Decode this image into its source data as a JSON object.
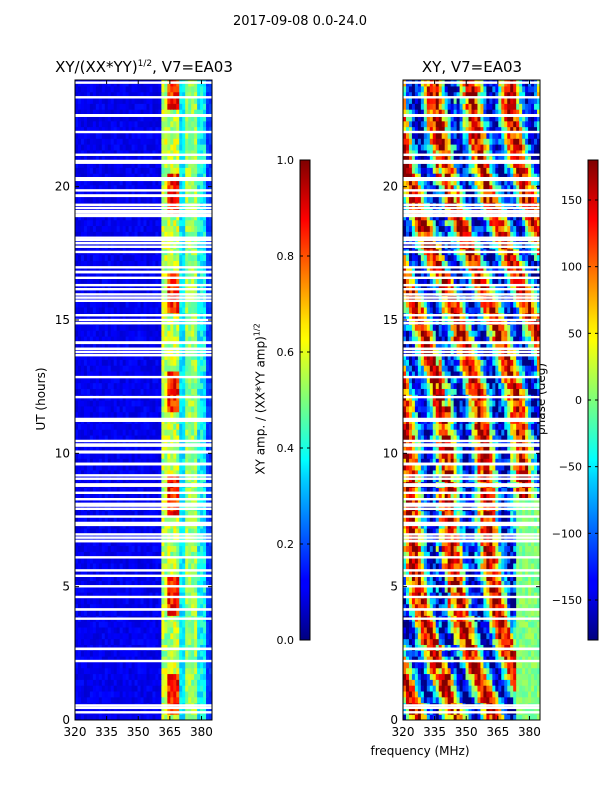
{
  "suptitle": "2017-09-08 0.0-24.0",
  "chart_data": [
    {
      "type": "heatmap",
      "title_main": "XY/(XX*YY)",
      "title_exp": "1/2",
      "title_suffix": ", V7=EA03",
      "xlabel": "",
      "ylabel": "UT (hours)",
      "xlim": [
        320,
        385
      ],
      "ylim": [
        0,
        24
      ],
      "xticks": [
        "320",
        "335",
        "350",
        "365",
        "380"
      ],
      "yticks": [
        "0",
        "5",
        "10",
        "15",
        "20"
      ],
      "colorbar": {
        "label_main": "XY amp. / (XX*YY amp)",
        "label_exp": "1/2",
        "range": [
          0.0,
          1.0
        ],
        "ticks": [
          "0.0",
          "0.2",
          "0.4",
          "0.6",
          "0.8",
          "1.0"
        ],
        "colormap": "jet"
      },
      "notes": "Mostly low values (~0.1) below 362 MHz; strong bands (0.5-0.9) near 362-370 MHz and 374-380 MHz; many blank time rows"
    },
    {
      "type": "heatmap",
      "title_main": "XY, V7=EA03",
      "xlabel": "frequency (MHz)",
      "ylabel": "",
      "xlim": [
        320,
        385
      ],
      "ylim": [
        0,
        24
      ],
      "xticks": [
        "320",
        "335",
        "350",
        "365",
        "380"
      ],
      "yticks": [
        "0",
        "5",
        "10",
        "15",
        "20"
      ],
      "colorbar": {
        "label_main": "phase (deg)",
        "range": [
          -180,
          180
        ],
        "ticks": [
          "−150",
          "−100",
          "−50",
          "0",
          "50",
          "100",
          "150"
        ],
        "colormap": "jet"
      },
      "notes": "Phase wrapping across full range; noisy structure, vertical stripes between 330-360 MHz"
    }
  ]
}
